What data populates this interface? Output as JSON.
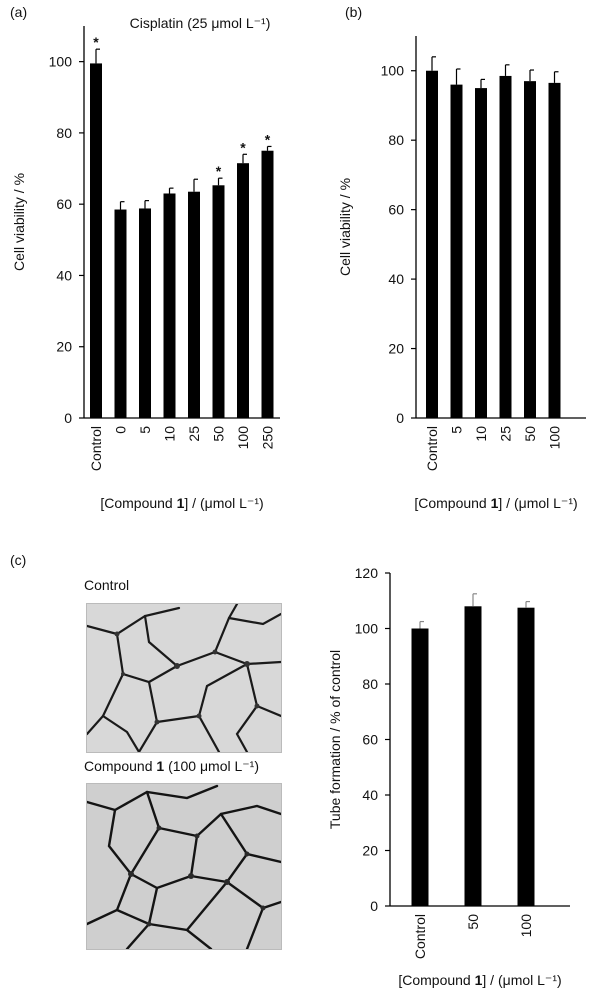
{
  "panels": {
    "a": "(a)",
    "b": "(b)",
    "c": "(c)"
  },
  "photos": {
    "control_caption": "Control",
    "compound_caption_prefix": "Compound ",
    "compound_caption_bold": "1",
    "compound_caption_suffix": " (100 μmol L⁻¹)"
  },
  "chart_data": [
    {
      "id": "a",
      "type": "bar",
      "title": "Cisplatin (25 μmol L⁻¹)",
      "ylabel": "Cell viability / %",
      "xlabel_prefix": "[Compound ",
      "xlabel_bold": "1",
      "xlabel_suffix": "] / (μmol L⁻¹)",
      "categories": [
        "Control",
        "0",
        "5",
        "10",
        "25",
        "50",
        "100",
        "250"
      ],
      "values": [
        99.5,
        58.5,
        58.8,
        63,
        63.5,
        65.3,
        71.5,
        75
      ],
      "errors": [
        4,
        2.2,
        2.2,
        1.5,
        3.5,
        2,
        2.5,
        1.2
      ],
      "significant": [
        true,
        false,
        false,
        false,
        false,
        true,
        true,
        true
      ],
      "ylim": [
        0,
        110
      ],
      "yticks": [
        0,
        20,
        40,
        60,
        80,
        100
      ],
      "bar_color": "#000000",
      "error_color": "#000000"
    },
    {
      "id": "b",
      "type": "bar",
      "title": "",
      "ylabel": "Cell viability / %",
      "xlabel_prefix": "[Compound ",
      "xlabel_bold": "1",
      "xlabel_suffix": "] / (μmol L⁻¹)",
      "categories": [
        "Control",
        "5",
        "10",
        "25",
        "50",
        "100"
      ],
      "values": [
        100,
        96,
        95,
        98.5,
        97,
        96.5
      ],
      "errors": [
        4,
        4.5,
        2.5,
        3.2,
        3.2,
        3.2
      ],
      "significant": [
        false,
        false,
        false,
        false,
        false,
        false
      ],
      "ylim": [
        0,
        110
      ],
      "yticks": [
        0,
        20,
        40,
        60,
        80,
        100
      ],
      "bar_color": "#000000",
      "error_color": "#000000"
    },
    {
      "id": "c",
      "type": "bar",
      "title": "",
      "ylabel": "Tube formation / % of control",
      "xlabel_prefix": "[Compound ",
      "xlabel_bold": "1",
      "xlabel_suffix": "] / (μmol L⁻¹)",
      "categories": [
        "Control",
        "50",
        "100"
      ],
      "values": [
        100,
        108,
        107.5
      ],
      "errors": [
        2.5,
        4.5,
        2.2
      ],
      "significant": [
        false,
        false,
        false
      ],
      "ylim": [
        0,
        120
      ],
      "yticks": [
        0,
        20,
        40,
        60,
        80,
        100,
        120
      ],
      "bar_color": "#000000",
      "error_color": "#888888"
    }
  ]
}
